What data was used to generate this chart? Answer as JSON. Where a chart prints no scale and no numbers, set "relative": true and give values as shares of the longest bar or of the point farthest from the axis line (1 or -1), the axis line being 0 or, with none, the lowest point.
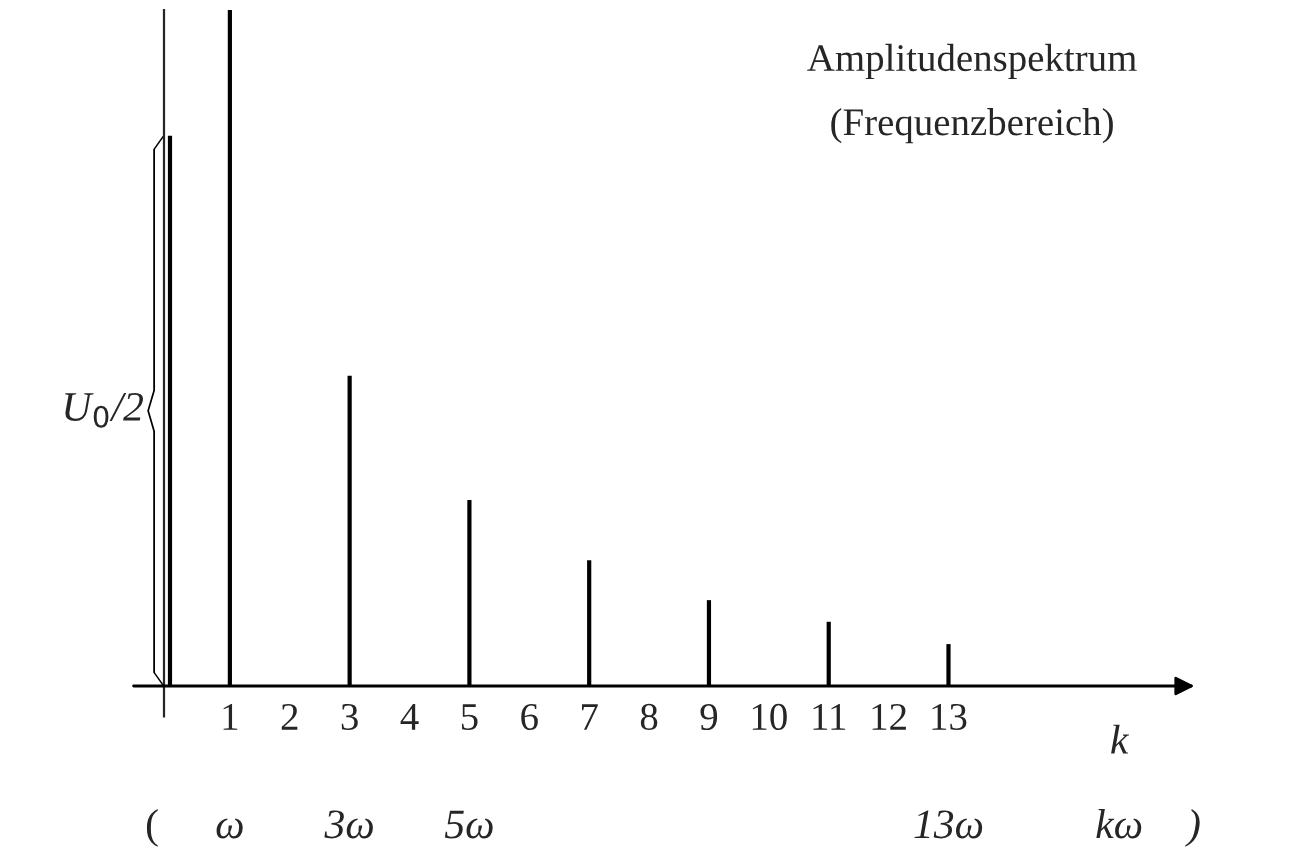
{
  "chart_data": {
    "type": "bar",
    "title": "Amplitudenspektrum",
    "subtitle": "(Frequenzbereich)",
    "xlabel": "k",
    "categories": [
      null,
      "1",
      "2",
      "3",
      "4",
      "5",
      "6",
      "7",
      "8",
      "9",
      "10",
      "11",
      "12",
      "13"
    ],
    "values": [
      0.814,
      1,
      0,
      0.459,
      0,
      0.275,
      0,
      0.186,
      0,
      0.127,
      0,
      0.095,
      0,
      0.062
    ],
    "color": "#000000",
    "relative": true,
    "annotations": [
      "U$_{0}$/2",
      "(",
      "ω",
      "3ω",
      "5ω",
      "13ω",
      "kω",
      ")"
    ]
  }
}
